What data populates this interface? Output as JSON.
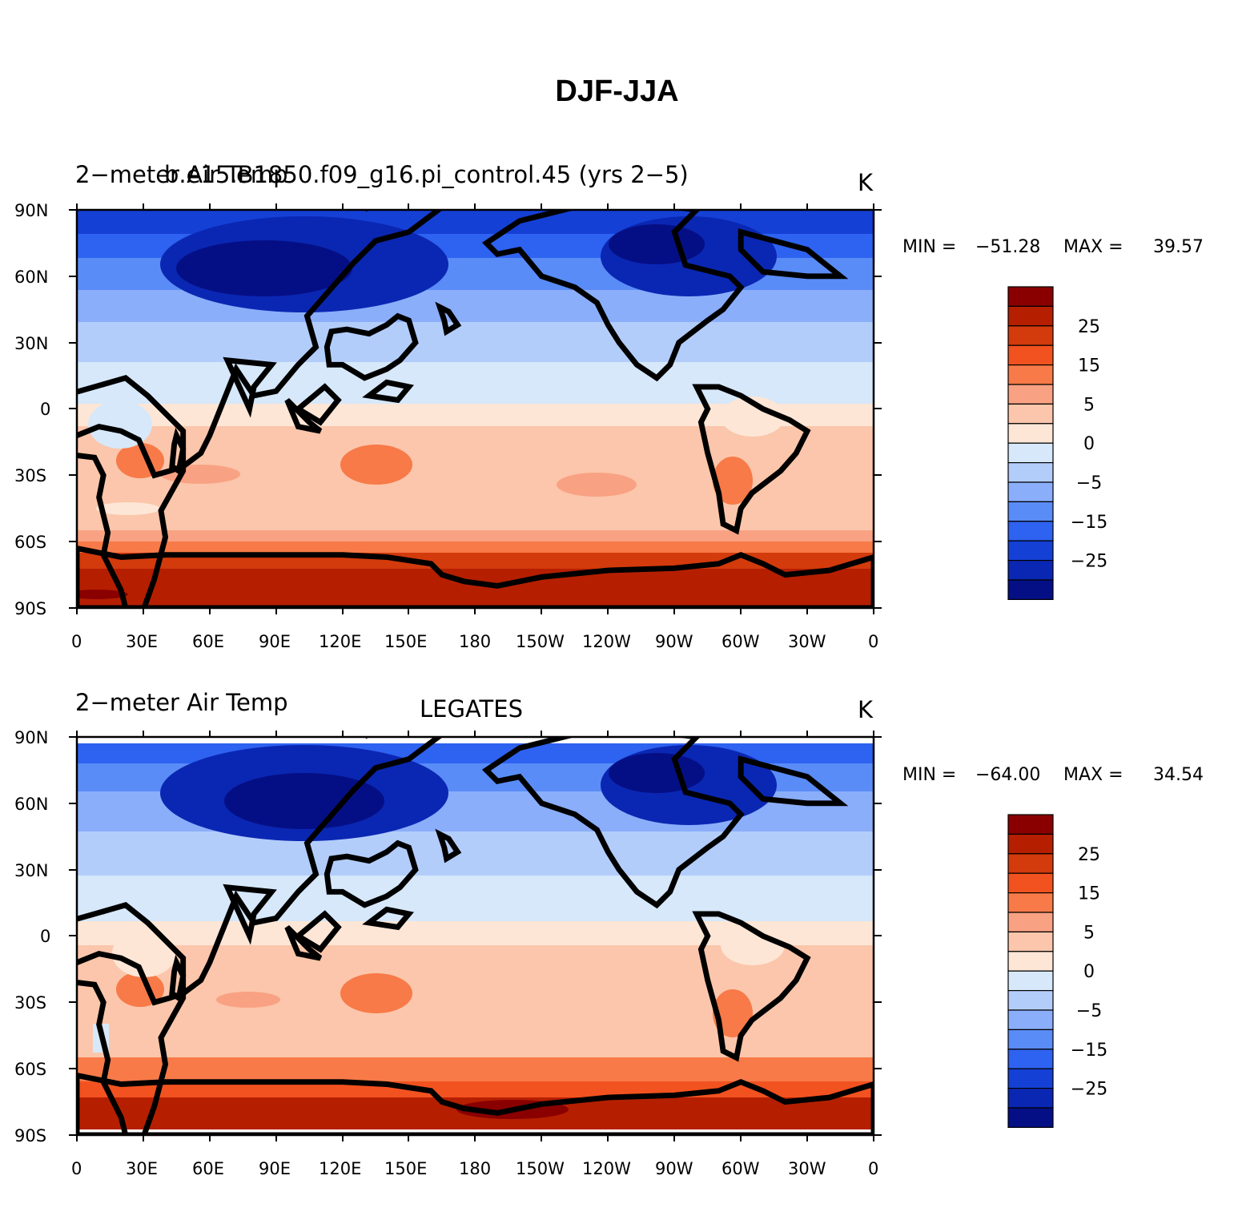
{
  "title": "DJF-JJA",
  "panels": [
    {
      "id": "model",
      "left_title": "2−meter Air Temp",
      "center_title": "b.e15.B1850.f09_g16.pi_control.45 (yrs 2−5)",
      "units": "K",
      "min_label": "MIN =",
      "min_value": "−51.28",
      "max_label": "MAX =",
      "max_value": "39.57"
    },
    {
      "id": "obs",
      "left_title": "2−meter Air Temp",
      "center_title": "LEGATES",
      "units": "K",
      "min_label": "MIN =",
      "min_value": "−64.00",
      "max_label": "MAX =",
      "max_value": "34.54"
    }
  ],
  "lat_labels": [
    "90N",
    "60N",
    "30N",
    "0",
    "30S",
    "60S",
    "90S"
  ],
  "lon_labels": [
    "0",
    "30E",
    "60E",
    "90E",
    "120E",
    "150E",
    "180",
    "150W",
    "120W",
    "90W",
    "60W",
    "30W",
    "0"
  ],
  "colorbar": {
    "labels": [
      "25",
      "15",
      "5",
      "0",
      "−5",
      "−15",
      "−25"
    ],
    "colors_top_to_bottom": [
      "#8a0000",
      "#b51f00",
      "#d33a0c",
      "#f2521f",
      "#f77a48",
      "#f9a283",
      "#fbc6ab",
      "#fde6d6",
      "#d6e8fa",
      "#b3cdfb",
      "#8aaefa",
      "#5a8cf7",
      "#2e62f0",
      "#1540d6",
      "#0a27b3",
      "#050f85"
    ]
  }
}
